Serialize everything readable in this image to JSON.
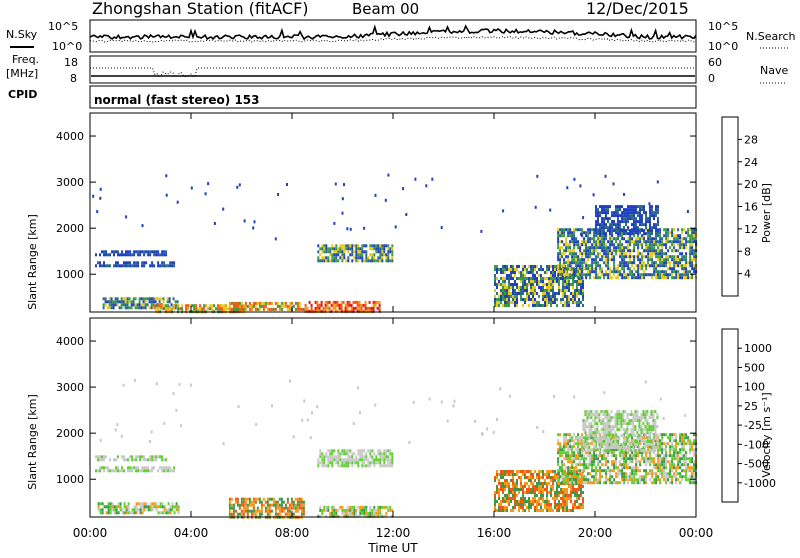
{
  "header": {
    "station": "Zhongshan Station (fitACF)",
    "beam": "Beam 00",
    "date": "12/Dec/2015"
  },
  "top_panels": {
    "nsky_label": "N.Sky",
    "nsky_ticks": [
      "10^5",
      "10^0"
    ],
    "nsearch_label": "N.Search",
    "nsearch_ticks": [
      "10^5",
      "10^0"
    ],
    "freq_label": "Freq.",
    "freq_unit": "[MHz]",
    "freq_ticks": [
      "18",
      "8"
    ],
    "nave_label": "Nave",
    "nave_ticks": [
      "60",
      "0"
    ],
    "cpid_label": "CPID",
    "cpid_text": "normal (fast stereo) 153"
  },
  "chart_data": [
    {
      "type": "heatmap",
      "name": "power-panel",
      "ylabel": "Slant Range [km]",
      "xlabel": "",
      "ylim": [
        180,
        4500
      ],
      "yticks": [
        1000,
        2000,
        3000,
        4000
      ],
      "xlim": [
        0,
        24
      ],
      "xticks": [
        "00:00",
        "04:00",
        "08:00",
        "12:00",
        "16:00",
        "20:00",
        "00:00"
      ],
      "colorbar": {
        "label": "Power [dB]",
        "ticks": [
          "28",
          "24",
          "20",
          "16",
          "12",
          "8",
          "4"
        ],
        "colors": [
          "#e8140e",
          "#f05a14",
          "#f59a18",
          "#e8c81e",
          "#3c9a46",
          "#2a6a88",
          "#2040c0",
          "#1e1ef0"
        ]
      },
      "regions": [
        {
          "t": [
            0.2,
            3.0
          ],
          "r": [
            1400,
            1520
          ],
          "level": "low"
        },
        {
          "t": [
            0.2,
            3.3
          ],
          "r": [
            1150,
            1280
          ],
          "level": "low"
        },
        {
          "t": [
            0.5,
            3.5
          ],
          "r": [
            300,
            500
          ],
          "level": "mid"
        },
        {
          "t": [
            2.5,
            6.5
          ],
          "r": [
            200,
            350
          ],
          "level": "high"
        },
        {
          "t": [
            5.5,
            8.5
          ],
          "r": [
            220,
            400
          ],
          "level": "high"
        },
        {
          "t": [
            8.5,
            11.5
          ],
          "r": [
            220,
            420
          ],
          "level": "max"
        },
        {
          "t": [
            9.0,
            12.0
          ],
          "r": [
            1300,
            1650
          ],
          "level": "mid"
        },
        {
          "t": [
            16.0,
            19.5
          ],
          "r": [
            300,
            1200
          ],
          "level": "mid"
        },
        {
          "t": [
            18.5,
            24.0
          ],
          "r": [
            900,
            2000
          ],
          "level": "mid"
        },
        {
          "t": [
            20.0,
            22.5
          ],
          "r": [
            1900,
            2500
          ],
          "level": "low"
        }
      ]
    },
    {
      "type": "heatmap",
      "name": "velocity-panel",
      "ylabel": "Slant Range [km]",
      "xlabel": "Time UT",
      "ylim": [
        180,
        4500
      ],
      "yticks": [
        1000,
        2000,
        3000,
        4000
      ],
      "xlim": [
        0,
        24
      ],
      "xticks": [
        "00:00",
        "04:00",
        "08:00",
        "12:00",
        "16:00",
        "20:00",
        "00:00"
      ],
      "colorbar": {
        "label": "Velocity [m s⁻¹]",
        "ticks": [
          "1000",
          "500",
          "100",
          "25",
          "-25",
          "-100",
          "-500",
          "-1000"
        ],
        "colors": [
          "#2040c0",
          "#2a6a88",
          "#3c9a46",
          "#5fd030",
          "#c8c8c8",
          "#f59a18",
          "#f05a14",
          "#e8140e"
        ]
      },
      "regions": [
        {
          "t": [
            0.2,
            3.0
          ],
          "r": [
            1400,
            1520
          ],
          "level": "ground"
        },
        {
          "t": [
            0.2,
            3.3
          ],
          "r": [
            1150,
            1280
          ],
          "level": "ground"
        },
        {
          "t": [
            0.3,
            3.5
          ],
          "r": [
            250,
            500
          ],
          "level": "pos"
        },
        {
          "t": [
            5.5,
            8.5
          ],
          "r": [
            200,
            600
          ],
          "level": "neg"
        },
        {
          "t": [
            9.0,
            12.0
          ],
          "r": [
            220,
            420
          ],
          "level": "pos"
        },
        {
          "t": [
            9.0,
            12.0
          ],
          "r": [
            1300,
            1650
          ],
          "level": "ground"
        },
        {
          "t": [
            16.0,
            19.5
          ],
          "r": [
            300,
            1200
          ],
          "level": "neg"
        },
        {
          "t": [
            18.5,
            24.0
          ],
          "r": [
            900,
            2000
          ],
          "level": "pos"
        },
        {
          "t": [
            19.5,
            22.5
          ],
          "r": [
            1600,
            2500
          ],
          "level": "ground"
        }
      ]
    }
  ]
}
